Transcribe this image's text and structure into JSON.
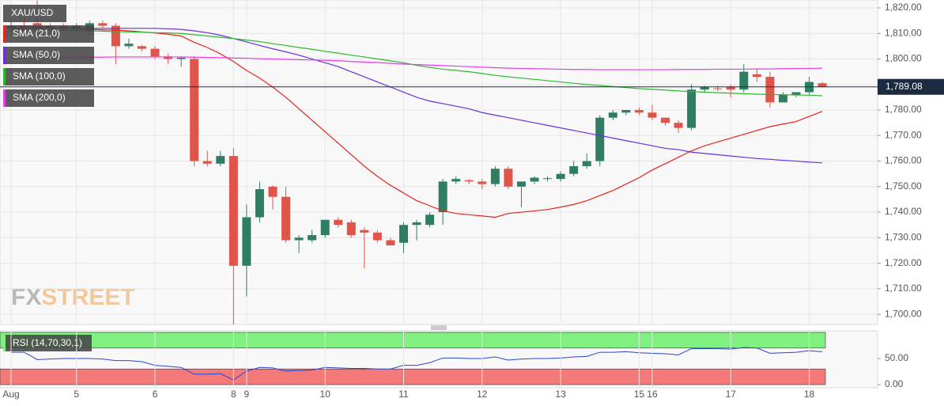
{
  "chart_data": [
    {
      "type": "candlestick",
      "title": "XAU/USD",
      "categories": [
        "Aug",
        null,
        null,
        null,
        null,
        "5",
        null,
        null,
        null,
        null,
        null,
        "6",
        null,
        null,
        null,
        null,
        null,
        "8",
        "9",
        null,
        null,
        null,
        null,
        null,
        "10",
        null,
        null,
        null,
        null,
        null,
        "11",
        null,
        null,
        null,
        null,
        null,
        "12",
        null,
        null,
        null,
        null,
        null,
        "13",
        null,
        null,
        null,
        null,
        null,
        "15",
        "16",
        null,
        null,
        null,
        null,
        null,
        "17",
        null,
        null,
        null,
        null,
        null,
        "18",
        null
      ],
      "open": [
        1812,
        1813,
        1814,
        1812,
        1813,
        1812,
        1811,
        1814,
        1813,
        1805,
        1805,
        1804,
        1801,
        1800,
        1800,
        1760,
        1759,
        1762,
        1719,
        1738,
        1750,
        1746,
        1729,
        1729,
        1731,
        1737,
        1736,
        1733,
        1732,
        1729,
        1728,
        1735,
        1735,
        1740,
        1752,
        1752.5,
        1752,
        1751,
        1757,
        1750,
        1752,
        1753,
        1753,
        1755,
        1758,
        1760,
        1777,
        1779,
        1780,
        1779,
        1777,
        1775,
        1773,
        1788,
        1788.5,
        1789,
        1788,
        1794,
        1793,
        1783,
        1786,
        1787,
        1790.5
      ],
      "high": [
        1815,
        1816,
        1823,
        1814,
        1814,
        1814,
        1815,
        1815,
        1814,
        1808,
        1805.5,
        1805,
        1802,
        1801,
        1801,
        1764,
        1764,
        1765,
        1743,
        1752,
        1750.5,
        1750,
        1731,
        1733,
        1737,
        1738,
        1737,
        1734,
        1733,
        1730,
        1736,
        1737,
        1740,
        1753,
        1754,
        1753,
        1753,
        1758,
        1758,
        1752,
        1754,
        1754,
        1756,
        1760,
        1763,
        1778,
        1780,
        1780,
        1781,
        1782,
        1777,
        1776,
        1790,
        1789.5,
        1789.5,
        1790,
        1798,
        1796,
        1795,
        1787,
        1787,
        1793,
        1791
      ],
      "low": [
        1810,
        1811,
        1811,
        1810,
        1811,
        1810,
        1809,
        1812,
        1798,
        1804,
        1803,
        1800,
        1798,
        1797,
        1758,
        1758,
        1758,
        1696,
        1707,
        1736,
        1741,
        1728,
        1724,
        1728,
        1730,
        1734,
        1730,
        1718,
        1728,
        1727,
        1724,
        1729,
        1734,
        1735,
        1751,
        1751,
        1749,
        1750,
        1749,
        1742,
        1751,
        1752,
        1752,
        1754,
        1757,
        1758,
        1776,
        1778,
        1778,
        1776,
        1774,
        1771,
        1772,
        1787,
        1787.5,
        1785,
        1787,
        1791,
        1781,
        1783,
        1785,
        1786,
        1789
      ],
      "close": [
        1813,
        1812,
        1812,
        1813,
        1812,
        1813,
        1814,
        1813,
        1805,
        1806,
        1804,
        1801,
        1800,
        1800.5,
        1760,
        1759,
        1762,
        1719,
        1738,
        1749,
        1746,
        1729,
        1730,
        1731,
        1737,
        1735,
        1731,
        1732,
        1729,
        1727,
        1735,
        1736,
        1739,
        1752,
        1753,
        1752,
        1751,
        1757,
        1750,
        1752,
        1753.5,
        1753.3,
        1755,
        1758,
        1760,
        1777,
        1779,
        1780,
        1779,
        1777,
        1775,
        1773,
        1788,
        1789,
        1788.3,
        1788,
        1795,
        1793,
        1783,
        1786,
        1787,
        1791,
        1789.1
      ],
      "up_color": "#2f7d63",
      "down_color": "#e0544a",
      "lines": [
        {
          "name": "SMA (21,0)",
          "color": "#e8241c",
          "values": [
            1813,
            1812.8,
            1812.5,
            1812.3,
            1812,
            1811.8,
            1811.6,
            1811.4,
            1811.3,
            1811,
            1810.6,
            1810.2,
            1809.7,
            1809,
            1806.5,
            1804.5,
            1802,
            1799,
            1795.5,
            1792.5,
            1789,
            1785,
            1780.5,
            1776,
            1771.5,
            1767,
            1762.5,
            1758,
            1754,
            1750.5,
            1747.5,
            1744.5,
            1742.5,
            1740.5,
            1739.5,
            1739,
            1738.5,
            1738,
            1739.5,
            1740,
            1740.5,
            1741,
            1742,
            1743,
            1744.5,
            1746.5,
            1748.5,
            1751,
            1753.5,
            1756.5,
            1759,
            1761.5,
            1764,
            1766,
            1767.5,
            1769,
            1770.5,
            1772,
            1773.5,
            1774.5,
            1775.5,
            1777.5,
            1779.5
          ]
        },
        {
          "name": "SMA (50,0)",
          "color": "#6a2fd8",
          "values": [
            1812,
            1812,
            1812,
            1812,
            1812,
            1812,
            1812,
            1812,
            1812,
            1812,
            1812,
            1812,
            1811.8,
            1811.6,
            1811,
            1810.3,
            1809.3,
            1808,
            1806.7,
            1805.3,
            1804,
            1802.8,
            1801.5,
            1800,
            1798.5,
            1797,
            1795,
            1793,
            1791,
            1789,
            1787,
            1785,
            1783.5,
            1782.5,
            1781.5,
            1780.5,
            1779,
            1778,
            1777,
            1776,
            1775,
            1774,
            1773,
            1772,
            1771,
            1770,
            1769,
            1768,
            1767,
            1766,
            1765,
            1764.5,
            1763.5,
            1763,
            1762.5,
            1762,
            1761.5,
            1761,
            1760.7,
            1760.3,
            1760,
            1759.6,
            1759.3
          ]
        },
        {
          "name": "SMA (100,0)",
          "color": "#2eb82e",
          "values": [
            1811.6,
            1811.5,
            1811.4,
            1811.3,
            1811.2,
            1811.1,
            1811,
            1810.9,
            1810.7,
            1810.6,
            1810.5,
            1810.3,
            1810.2,
            1810,
            1809.5,
            1809,
            1808.5,
            1808,
            1807.4,
            1806.8,
            1806,
            1805.3,
            1804.5,
            1803.8,
            1803,
            1802.3,
            1801.5,
            1800.8,
            1800,
            1799.3,
            1798.5,
            1797.5,
            1796.7,
            1796,
            1795.5,
            1795,
            1794.3,
            1793.6,
            1793,
            1792.5,
            1792,
            1791.5,
            1791,
            1790.5,
            1790,
            1789.6,
            1789.2,
            1788.8,
            1788.4,
            1788.1,
            1787.8,
            1787.5,
            1787.2,
            1787,
            1786.8,
            1786.6,
            1786.4,
            1786.2,
            1786.1,
            1786,
            1785.9,
            1785.8,
            1785.6
          ]
        },
        {
          "name": "SMA (200,0)",
          "color": "#e83ce8",
          "values": [
            1800.2,
            1800.3,
            1800.4,
            1800.5,
            1800.6,
            1800.6,
            1800.7,
            1800.7,
            1800.8,
            1800.8,
            1800.8,
            1800.8,
            1800.8,
            1800.8,
            1800.7,
            1800.6,
            1800.5,
            1800.4,
            1800.3,
            1800.1,
            1800,
            1799.9,
            1799.7,
            1799.6,
            1799.5,
            1799.3,
            1799,
            1798.8,
            1798.6,
            1798.3,
            1798,
            1797.8,
            1797.6,
            1797.4,
            1797.2,
            1797,
            1796.8,
            1796.6,
            1796.4,
            1796.3,
            1796.2,
            1796.1,
            1796,
            1795.9,
            1795.9,
            1795.8,
            1795.8,
            1795.8,
            1795.8,
            1795.8,
            1795.8,
            1795.9,
            1795.9,
            1795.9,
            1796,
            1796,
            1796,
            1796.1,
            1796.1,
            1796.2,
            1796.3,
            1796.3,
            1796.4
          ]
        }
      ],
      "ylim": [
        1696,
        1823.1
      ],
      "yticks": [
        {
          "value": 1700,
          "label": "1,700.00"
        },
        {
          "value": 1710,
          "label": "1,710.00"
        },
        {
          "value": 1720,
          "label": "1,720.00"
        },
        {
          "value": 1730,
          "label": "1,730.00"
        },
        {
          "value": 1740,
          "label": "1,740.00"
        },
        {
          "value": 1750,
          "label": "1,750.00"
        },
        {
          "value": 1760,
          "label": "1,760.00"
        },
        {
          "value": 1770,
          "label": "1,770.00"
        },
        {
          "value": 1780,
          "label": "1,780.00"
        },
        {
          "value": 1790,
          "label": "1,790.00"
        },
        {
          "value": 1800,
          "label": "1,800.00"
        },
        {
          "value": 1810,
          "label": "1,810.00"
        },
        {
          "value": 1820,
          "label": "1,820.00"
        }
      ],
      "last_price": {
        "value": 1789.08,
        "label": "1,789.08"
      },
      "grid": true,
      "watermark": "FXSTREET"
    },
    {
      "type": "line",
      "title": "RSI (14,70,30,1)",
      "color": "#2547d0",
      "values": [
        62,
        62,
        48,
        49,
        50,
        50,
        50,
        49,
        46,
        46,
        44,
        37,
        35,
        33,
        20,
        20,
        21,
        9,
        26,
        33,
        32,
        26,
        27,
        28,
        33,
        32,
        31,
        31,
        30,
        30,
        37,
        37,
        42,
        51,
        51,
        50,
        50,
        53,
        47,
        49,
        50,
        50,
        51,
        53,
        54,
        62,
        62,
        63,
        61,
        60,
        59,
        57,
        69,
        69,
        69,
        68,
        71,
        70,
        60,
        61,
        62,
        65,
        63
      ],
      "ylim": [
        0,
        100
      ],
      "yticks": [
        {
          "value": 0,
          "label": "0.00"
        },
        {
          "value": 50,
          "label": "50.00"
        }
      ],
      "upper_band": 70,
      "lower_band": 30,
      "upper_color": "#80f080",
      "lower_color": "#f47a7a"
    }
  ]
}
